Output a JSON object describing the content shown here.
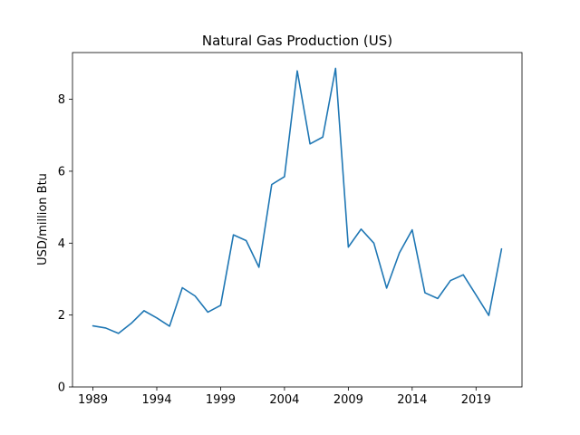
{
  "chart_data": {
    "type": "line",
    "title": "Natural Gas Production (US)",
    "xlabel": "",
    "ylabel": "USD/million Btu",
    "x": [
      1989,
      1990,
      1991,
      1992,
      1993,
      1994,
      1995,
      1996,
      1997,
      1998,
      1999,
      2000,
      2001,
      2002,
      2003,
      2004,
      2005,
      2006,
      2007,
      2008,
      2009,
      2010,
      2011,
      2012,
      2013,
      2014,
      2015,
      2016,
      2017,
      2018,
      2019,
      2020,
      2021
    ],
    "series": [
      {
        "values": [
          1.7,
          1.64,
          1.49,
          1.77,
          2.12,
          1.92,
          1.69,
          2.76,
          2.53,
          2.08,
          2.27,
          4.23,
          4.07,
          3.33,
          5.63,
          5.85,
          8.79,
          6.76,
          6.95,
          8.86,
          3.89,
          4.39,
          4.0,
          2.75,
          3.73,
          4.37,
          2.62,
          2.46,
          2.96,
          3.12,
          2.56,
          1.99,
          3.84
        ]
      }
    ],
    "xticks": [
      "1989",
      "1994",
      "1999",
      "2004",
      "2009",
      "2014",
      "2019"
    ],
    "yticks": [
      "0",
      "2",
      "4",
      "6",
      "8"
    ],
    "xlim": [
      1987.4,
      2022.6
    ],
    "ylim": [
      0,
      9.3
    ],
    "grid": false,
    "colors": {
      "line": "#1f77b4"
    }
  }
}
